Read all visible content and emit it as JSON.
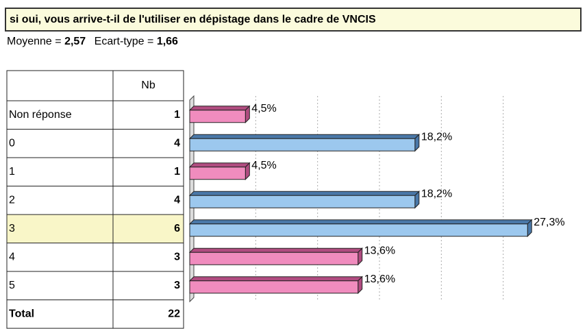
{
  "title": "si oui, vous arrive-t-il de l'utiliser en dépistage dans le cadre de VNCIS",
  "stats": {
    "mean_label": "Moyenne =",
    "mean": "2,57",
    "sd_label": "Ecart-type =",
    "sd": "1,66"
  },
  "table": {
    "header": "Nb",
    "rows": [
      [
        "Non réponse",
        1
      ],
      [
        "0",
        4
      ],
      [
        "1",
        1
      ],
      [
        "2",
        4
      ],
      [
        "3",
        6
      ],
      [
        "4",
        3
      ],
      [
        "5",
        3
      ]
    ],
    "total": [
      "Total",
      22
    ],
    "highlight_row": 4
  },
  "chart_data": {
    "type": "bar",
    "orientation": "horizontal",
    "values": [
      4.5,
      18.2,
      4.5,
      18.2,
      27.3,
      13.6,
      13.6
    ],
    "value_labels": [
      "4,5%",
      "18,2%",
      "4,5%",
      "18,2%",
      "27,3%",
      "13,6%",
      "13,6%"
    ],
    "colors": [
      "#f08cbe",
      "#9cc8ee",
      "#f08cbe",
      "#9cc8ee",
      "#9cc8ee",
      "#f08cbe",
      "#f08cbe"
    ],
    "xlim": [
      0,
      30
    ],
    "xticks": [
      5,
      10,
      15,
      20,
      25
    ],
    "grid": true
  }
}
